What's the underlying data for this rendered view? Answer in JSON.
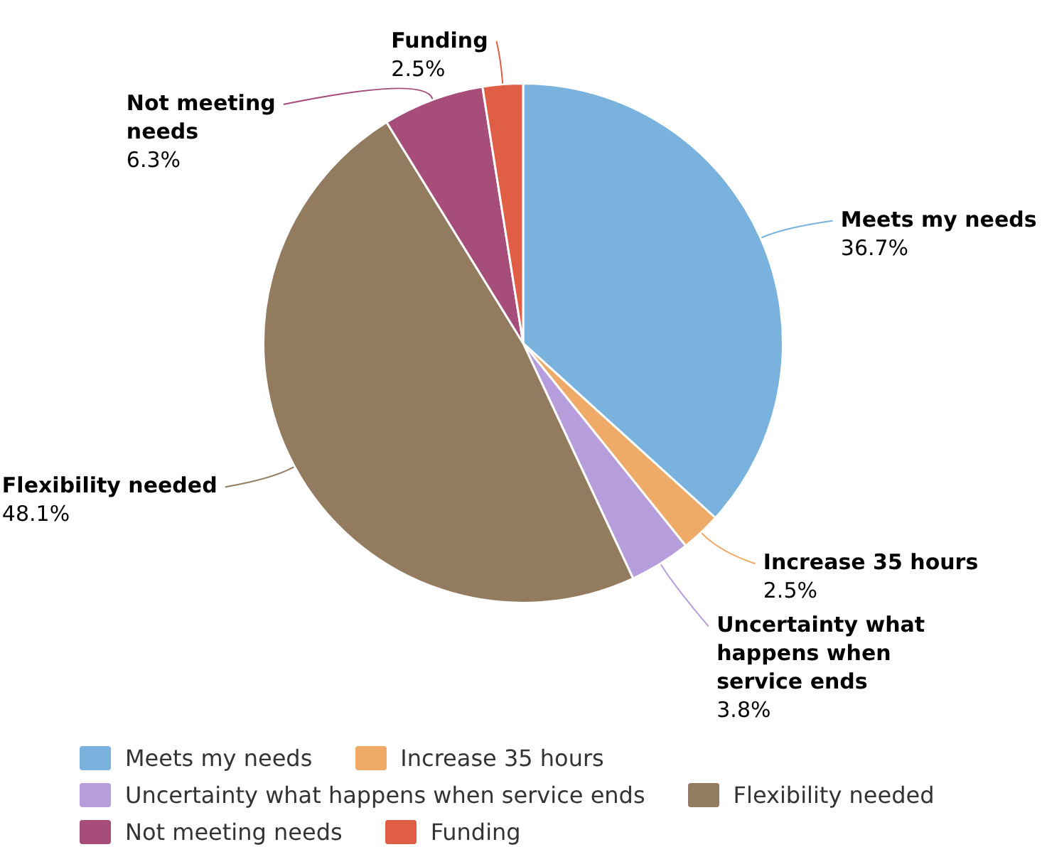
{
  "chart_data": {
    "type": "pie",
    "categories": [
      "Meets my needs",
      "Increase 35 hours",
      "Uncertainty what happens when service ends",
      "Flexibility needed",
      "Not meeting needs",
      "Funding"
    ],
    "values": [
      36.7,
      2.5,
      3.8,
      48.1,
      6.3,
      2.5
    ],
    "colors": [
      "#7ab2de",
      "#eeaa66",
      "#b69ddc",
      "#937b60",
      "#a64d79",
      "#e05e45"
    ],
    "value_labels": [
      "36.7%",
      "2.5%",
      "3.8%",
      "48.1%",
      "6.3%",
      "2.5%"
    ],
    "legend": "bottom"
  }
}
